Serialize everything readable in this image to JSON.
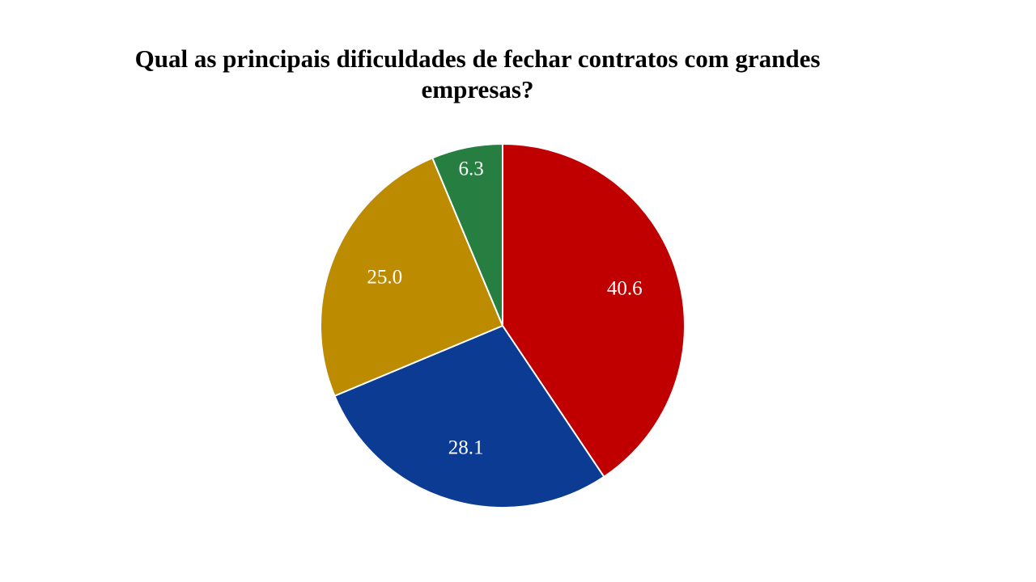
{
  "chart_data": {
    "type": "pie",
    "title": "Qual as principais dificuldades de fechar contratos com grandes empresas?",
    "slices": [
      {
        "value": 40.6,
        "label": "40.6",
        "color": "#c00000"
      },
      {
        "value": 28.1,
        "label": "28.1",
        "color": "#0b3b93"
      },
      {
        "value": 25.0,
        "label": "25.0",
        "color": "#bc8b00"
      },
      {
        "value": 6.3,
        "label": "6.3",
        "color": "#267f41"
      }
    ],
    "start_angle_deg": 0,
    "direction": "clockwise",
    "legend": "none"
  }
}
